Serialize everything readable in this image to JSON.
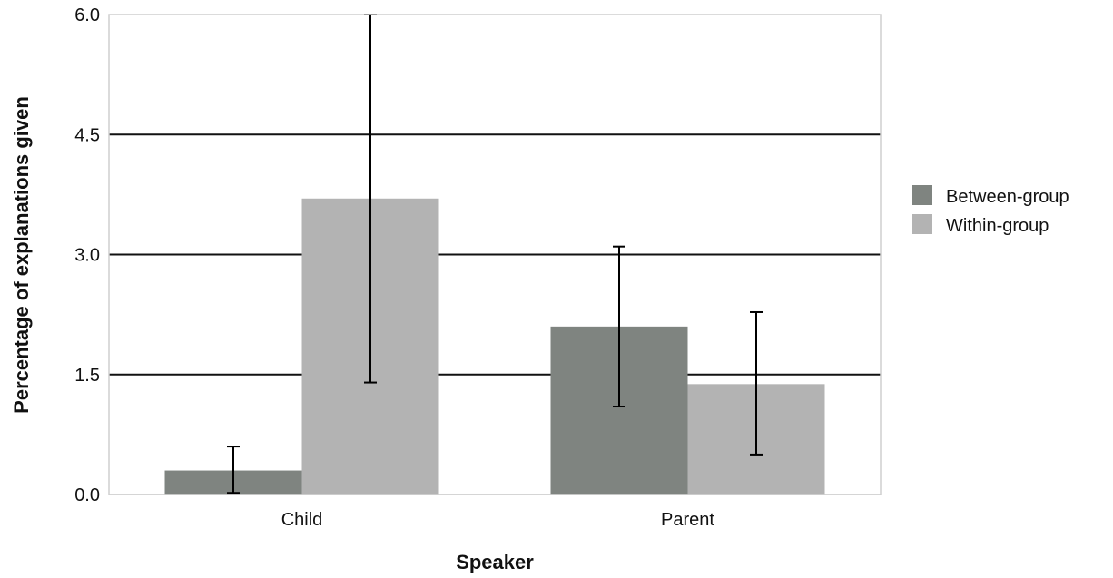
{
  "chart_data": {
    "type": "bar",
    "title": "",
    "xlabel": "Speaker",
    "ylabel": "Percentage of explanations given",
    "categories": [
      "Child",
      "Parent"
    ],
    "ylim": [
      0,
      6
    ],
    "yticks": [
      "0.0",
      "1.5",
      "3.0",
      "4.5",
      "6.0"
    ],
    "ytick_values": [
      0,
      1.5,
      3,
      4.5,
      6
    ],
    "grid": true,
    "legend_position": "right",
    "series": [
      {
        "name": "Between-group",
        "color": "#7f8480",
        "values": [
          0.3,
          2.1
        ],
        "error_low": [
          0.02,
          1.1
        ],
        "error_high": [
          0.6,
          3.1
        ]
      },
      {
        "name": "Within-group",
        "color": "#b3b3b3",
        "values": [
          3.7,
          1.38
        ],
        "error_low": [
          1.4,
          0.5
        ],
        "error_high": [
          6.0,
          2.28
        ]
      }
    ]
  }
}
